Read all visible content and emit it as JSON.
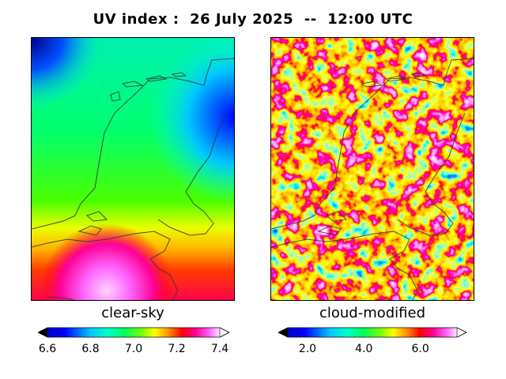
{
  "title": "UV index :  26 July 2025  --  12:00 UTC",
  "panels": [
    {
      "caption": "clear-sky",
      "colorbar": {
        "range": [
          6.6,
          7.4
        ],
        "ticks": [
          {
            "value": 6.6,
            "label": "6.6"
          },
          {
            "value": 6.8,
            "label": "6.8"
          },
          {
            "value": 7.0,
            "label": "7.0"
          },
          {
            "value": 7.2,
            "label": "7.2"
          },
          {
            "value": 7.4,
            "label": "7.4"
          }
        ],
        "extend": "both"
      }
    },
    {
      "caption": "cloud-modified",
      "colorbar": {
        "range": [
          1.3,
          7.3
        ],
        "ticks": [
          {
            "value": 2.0,
            "label": "2.0"
          },
          {
            "value": 4.0,
            "label": "4.0"
          },
          {
            "value": 6.0,
            "label": "6.0"
          }
        ],
        "extend": "both"
      }
    }
  ],
  "colormap": [
    "#000000",
    "#0000c8",
    "#0000ff",
    "#00c8ff",
    "#00ffc8",
    "#00ff5a",
    "#78ff00",
    "#ffff00",
    "#ff9600",
    "#ff0000",
    "#ff0096",
    "#ff64ff",
    "#ffc8ff",
    "#ffffff"
  ],
  "colors": {
    "coastline": "#333333",
    "frame": "#000000"
  }
}
